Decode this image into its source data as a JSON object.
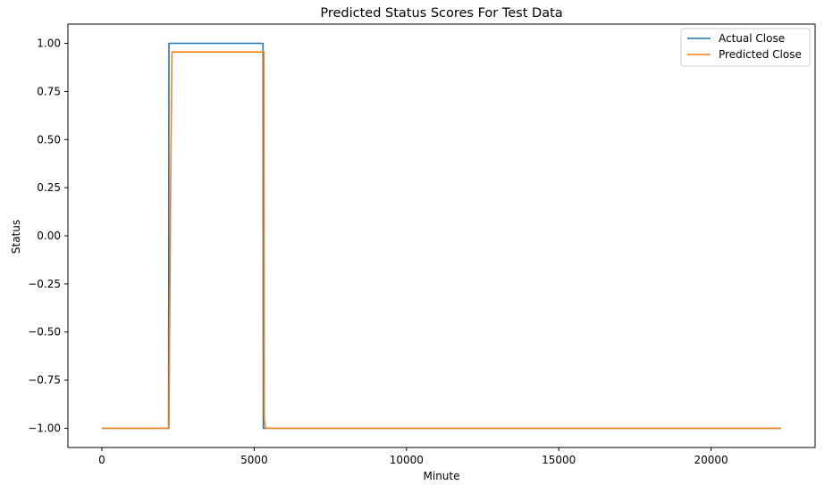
{
  "chart_data": {
    "type": "line",
    "title": "Predicted Status Scores For Test Data",
    "xlabel": "Minute",
    "ylabel": "Status",
    "xlim": [
      -1115,
      23415
    ],
    "ylim": [
      -1.1,
      1.1
    ],
    "xticks": [
      {
        "value": 0,
        "label": "0"
      },
      {
        "value": 5000,
        "label": "5000"
      },
      {
        "value": 10000,
        "label": "10000"
      },
      {
        "value": 15000,
        "label": "15000"
      },
      {
        "value": 20000,
        "label": "20000"
      }
    ],
    "yticks": [
      {
        "value": 1.0,
        "label": "1.00"
      },
      {
        "value": 0.75,
        "label": "0.75"
      },
      {
        "value": 0.5,
        "label": "0.50"
      },
      {
        "value": 0.25,
        "label": "0.25"
      },
      {
        "value": 0.0,
        "label": "0.00"
      },
      {
        "value": -0.25,
        "label": "−0.25"
      },
      {
        "value": -0.5,
        "label": "−0.50"
      },
      {
        "value": -0.75,
        "label": "−0.75"
      },
      {
        "value": -1.0,
        "label": "−1.00"
      }
    ],
    "grid": false,
    "legend_position": "top-right",
    "series": [
      {
        "name": "Actual Close",
        "color": "#1f77b4",
        "points": [
          [
            0,
            -1.0
          ],
          [
            2190,
            -1.0
          ],
          [
            2200,
            1.0
          ],
          [
            5290,
            1.0
          ],
          [
            5300,
            -1.0
          ],
          [
            22300,
            -1.0
          ]
        ]
      },
      {
        "name": "Predicted Close",
        "color": "#ff7f0e",
        "points": [
          [
            0,
            -1.0
          ],
          [
            2200,
            -1.0
          ],
          [
            2260,
            0.3
          ],
          [
            2300,
            0.955
          ],
          [
            5320,
            0.955
          ],
          [
            5330,
            -0.95
          ],
          [
            5360,
            -0.99
          ],
          [
            5400,
            -1.0
          ],
          [
            22300,
            -1.0
          ]
        ]
      }
    ]
  }
}
